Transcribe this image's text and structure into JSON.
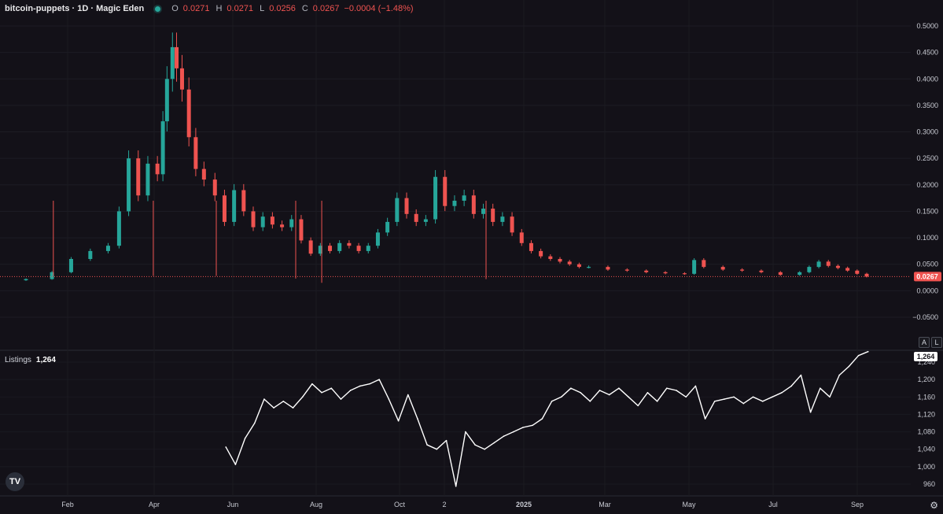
{
  "header": {
    "symbol": "bitcoin-puppets · 1D · Magic Eden",
    "status_color": "#26a69a",
    "open_label": "O",
    "open": "0.0271",
    "high_label": "H",
    "high": "0.0271",
    "low_label": "L",
    "low": "0.0256",
    "close_label": "C",
    "close": "0.0267",
    "change": "−0.0004 (−1.48%)"
  },
  "price_axis": {
    "ticks": [
      "0.5000",
      "0.4500",
      "0.4000",
      "0.3500",
      "0.3000",
      "0.2500",
      "0.2000",
      "0.1500",
      "0.1000",
      "0.0500",
      "0.0000",
      "−0.0500"
    ],
    "last_price_tag": "0.0267"
  },
  "listings_axis": {
    "ticks": [
      "1,240",
      "1,200",
      "1,160",
      "1,120",
      "1,080",
      "1,040",
      "1,000",
      "960"
    ],
    "last_value_tag": "1,264"
  },
  "listings_legend": {
    "name": "Listings",
    "value": "1,264"
  },
  "time_axis": {
    "labels": [
      "Feb",
      "Apr",
      "Jun",
      "Aug",
      "Oct",
      "2",
      "2025",
      "Mar",
      "May",
      "Jul",
      "Sep"
    ]
  },
  "buttons": {
    "auto": "A",
    "log": "L"
  },
  "logo": {
    "text": "TV",
    "icon": "tradingview-logo-icon"
  },
  "settings": {
    "icon": "gear-icon",
    "glyph": "⚙"
  },
  "colors": {
    "up": "#26a69a",
    "down": "#ef5350",
    "background": "#131118",
    "line": "#ffffff"
  },
  "chart_data": [
    {
      "type": "candlestick",
      "title": "bitcoin-puppets · 1D · Magic Eden",
      "ylim": [
        -0.06,
        0.51
      ],
      "x": [
        "2024-01-01",
        "2024-01-20",
        "2024-02-03",
        "2024-02-17",
        "2024-03-01",
        "2024-03-09",
        "2024-03-16",
        "2024-03-23",
        "2024-03-30",
        "2024-04-06",
        "2024-04-10",
        "2024-04-13",
        "2024-04-17",
        "2024-04-20",
        "2024-04-24",
        "2024-04-29",
        "2024-05-04",
        "2024-05-10",
        "2024-05-18",
        "2024-05-25",
        "2024-06-01",
        "2024-06-08",
        "2024-06-15",
        "2024-06-22",
        "2024-06-29",
        "2024-07-06",
        "2024-07-13",
        "2024-07-20",
        "2024-07-27",
        "2024-08-03",
        "2024-08-10",
        "2024-08-17",
        "2024-08-24",
        "2024-08-31",
        "2024-09-07",
        "2024-09-14",
        "2024-09-21",
        "2024-09-28",
        "2024-10-05",
        "2024-10-12",
        "2024-10-19",
        "2024-10-26",
        "2024-11-02",
        "2024-11-09",
        "2024-11-16",
        "2024-11-23",
        "2024-11-30",
        "2024-12-07",
        "2024-12-14",
        "2024-12-21",
        "2024-12-28",
        "2025-01-04",
        "2025-01-11",
        "2025-01-18",
        "2025-01-25",
        "2025-02-01",
        "2025-02-08",
        "2025-02-15",
        "2025-03-01",
        "2025-03-15",
        "2025-03-29",
        "2025-04-12",
        "2025-04-26",
        "2025-05-03",
        "2025-05-10",
        "2025-05-24",
        "2025-06-07",
        "2025-06-21",
        "2025-07-05",
        "2025-07-19",
        "2025-07-26",
        "2025-08-02",
        "2025-08-09",
        "2025-08-16",
        "2025-08-23",
        "2025-08-30",
        "2025-09-06"
      ],
      "close": [
        0.022,
        0.035,
        0.06,
        0.075,
        0.085,
        0.15,
        0.25,
        0.18,
        0.24,
        0.22,
        0.32,
        0.4,
        0.46,
        0.42,
        0.38,
        0.29,
        0.23,
        0.21,
        0.18,
        0.13,
        0.19,
        0.15,
        0.12,
        0.14,
        0.125,
        0.12,
        0.135,
        0.095,
        0.07,
        0.085,
        0.075,
        0.09,
        0.085,
        0.075,
        0.085,
        0.11,
        0.13,
        0.175,
        0.145,
        0.13,
        0.135,
        0.215,
        0.16,
        0.17,
        0.18,
        0.145,
        0.155,
        0.13,
        0.14,
        0.11,
        0.09,
        0.075,
        0.065,
        0.06,
        0.055,
        0.05,
        0.045,
        0.045,
        0.04,
        0.038,
        0.035,
        0.033,
        0.032,
        0.058,
        0.045,
        0.04,
        0.038,
        0.035,
        0.03,
        0.035,
        0.045,
        0.055,
        0.047,
        0.043,
        0.038,
        0.032,
        0.0267
      ],
      "low_wicks": [
        {
          "x": "2024-01-21",
          "low": 0.028
        },
        {
          "x": "2024-04-03",
          "low": 0.028
        },
        {
          "x": "2024-05-19",
          "low": 0.028
        },
        {
          "x": "2024-07-16",
          "low": 0.023
        },
        {
          "x": "2024-08-04",
          "low": 0.015
        },
        {
          "x": "2024-12-02",
          "low": 0.022
        }
      ],
      "last_price": 0.0267
    },
    {
      "type": "line",
      "name": "Listings",
      "ylim": [
        944,
        1270
      ],
      "x": [
        "2024-05-26",
        "2024-06-02",
        "2024-06-09",
        "2024-06-16",
        "2024-06-23",
        "2024-06-30",
        "2024-07-07",
        "2024-07-14",
        "2024-07-21",
        "2024-07-28",
        "2024-08-04",
        "2024-08-11",
        "2024-08-18",
        "2024-08-25",
        "2024-09-01",
        "2024-09-08",
        "2024-09-15",
        "2024-09-22",
        "2024-09-29",
        "2024-10-06",
        "2024-10-13",
        "2024-10-20",
        "2024-10-27",
        "2024-11-03",
        "2024-11-10",
        "2024-11-17",
        "2024-11-24",
        "2024-12-01",
        "2024-12-08",
        "2024-12-15",
        "2024-12-22",
        "2024-12-29",
        "2025-01-05",
        "2025-01-12",
        "2025-01-19",
        "2025-01-26",
        "2025-02-02",
        "2025-02-09",
        "2025-02-16",
        "2025-02-23",
        "2025-03-02",
        "2025-03-09",
        "2025-03-16",
        "2025-03-23",
        "2025-03-30",
        "2025-04-06",
        "2025-04-13",
        "2025-04-20",
        "2025-04-27",
        "2025-05-04",
        "2025-05-11",
        "2025-05-18",
        "2025-05-25",
        "2025-06-01",
        "2025-06-08",
        "2025-06-15",
        "2025-06-22",
        "2025-06-29",
        "2025-07-06",
        "2025-07-13",
        "2025-07-20",
        "2025-07-27",
        "2025-08-03",
        "2025-08-10",
        "2025-08-17",
        "2025-08-24",
        "2025-08-31",
        "2025-09-07"
      ],
      "values": [
        1045,
        1005,
        1065,
        1100,
        1155,
        1135,
        1150,
        1135,
        1160,
        1190,
        1170,
        1180,
        1155,
        1175,
        1185,
        1190,
        1200,
        1155,
        1105,
        1165,
        1110,
        1050,
        1040,
        1060,
        955,
        1080,
        1050,
        1040,
        1055,
        1070,
        1080,
        1090,
        1095,
        1110,
        1150,
        1160,
        1180,
        1170,
        1150,
        1175,
        1165,
        1180,
        1160,
        1140,
        1170,
        1150,
        1180,
        1175,
        1160,
        1185,
        1110,
        1150,
        1155,
        1160,
        1145,
        1160,
        1150,
        1160,
        1170,
        1185,
        1210,
        1125,
        1180,
        1160,
        1210,
        1230,
        1255,
        1264
      ]
    }
  ]
}
